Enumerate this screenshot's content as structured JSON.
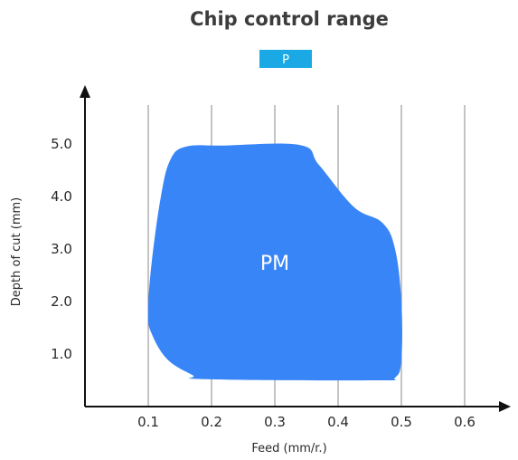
{
  "chart_data": {
    "type": "area",
    "title": "Chip control range",
    "xlabel": "Feed (mm/r.)",
    "ylabel": "Depth of cut (mm)",
    "x_ticks": [
      0.1,
      0.2,
      0.3,
      0.4,
      0.5,
      0.6
    ],
    "x_tick_labels": [
      "0.1",
      "0.2",
      "0.3",
      "0.4",
      "0.5",
      "0.6"
    ],
    "y_ticks": [
      1.0,
      2.0,
      3.0,
      4.0,
      5.0
    ],
    "y_tick_labels": [
      "1.0",
      "2.0",
      "3.0",
      "4.0",
      "5.0"
    ],
    "xlim": [
      0.0,
      0.68
    ],
    "ylim": [
      0.0,
      6.0
    ],
    "grid": "vertical",
    "legend": {
      "placement": "top-center",
      "entries": [
        {
          "label": "P",
          "color": "#1ba9e6"
        }
      ]
    },
    "regions": [
      {
        "label": "PM",
        "color": "#3885f7",
        "label_at": [
          0.3,
          2.6
        ],
        "points": [
          [
            0.1,
            1.8
          ],
          [
            0.105,
            2.7
          ],
          [
            0.12,
            4.0
          ],
          [
            0.135,
            4.7
          ],
          [
            0.16,
            4.95
          ],
          [
            0.22,
            4.97
          ],
          [
            0.34,
            4.98
          ],
          [
            0.37,
            4.6
          ],
          [
            0.425,
            3.8
          ],
          [
            0.47,
            3.5
          ],
          [
            0.49,
            3.0
          ],
          [
            0.5,
            2.0
          ],
          [
            0.5,
            0.9
          ],
          [
            0.49,
            0.55
          ],
          [
            0.46,
            0.5
          ],
          [
            0.19,
            0.52
          ],
          [
            0.17,
            0.6
          ],
          [
            0.13,
            0.9
          ],
          [
            0.105,
            1.4
          ]
        ]
      }
    ]
  }
}
